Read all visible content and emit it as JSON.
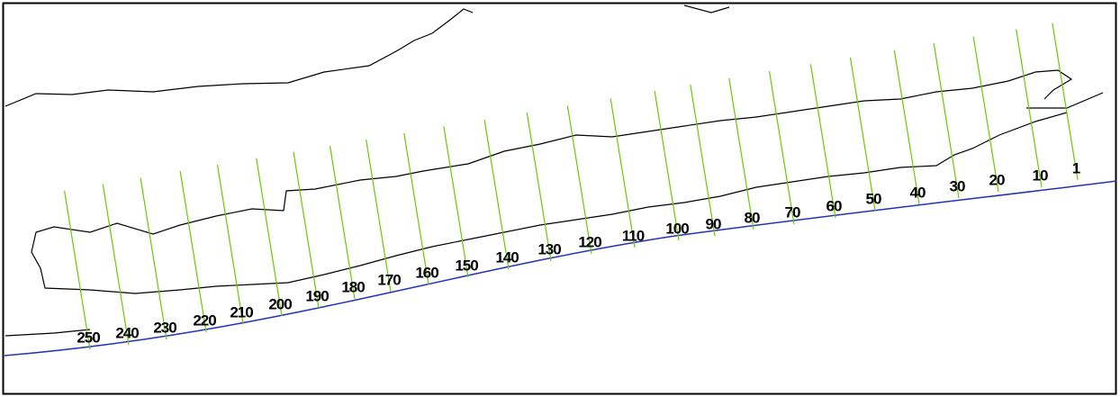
{
  "transects": {
    "labels": [
      "1",
      "10",
      "20",
      "30",
      "40",
      "50",
      "60",
      "70",
      "80",
      "90",
      "100",
      "110",
      "120",
      "130",
      "140",
      "150",
      "160",
      "170",
      "180",
      "190",
      "200",
      "210",
      "220",
      "230",
      "240",
      "250"
    ]
  }
}
